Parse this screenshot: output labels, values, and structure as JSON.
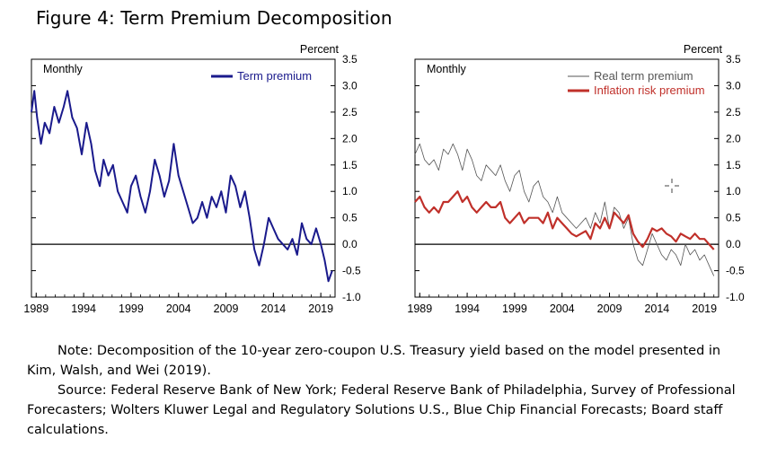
{
  "figure_title": "Figure 4: Term Premium Decomposition",
  "note_line": "Note: Decomposition of the 10-year zero-coupon U.S. Treasury yield based on the model presented in Kim, Walsh, and Wei (2019).",
  "source_line": "Source: Federal Reserve Bank of New York; Federal Reserve Bank of Philadelphia, Survey of Professional Forecasters; Wolters Kluwer Legal and Regulatory Solutions U.S., Blue Chip Financial Forecasts; Board staff calculations.",
  "colors": {
    "term_premium": "#1a1a8c",
    "real_term_premium": "#555555",
    "inflation_risk_premium": "#c0302a"
  },
  "chart_data": [
    {
      "type": "line",
      "frequency_label": "Monthly",
      "ylabel": "Percent",
      "ylim": [
        -1.0,
        3.5
      ],
      "yticks": [
        "3.5",
        "3.0",
        "2.5",
        "2.0",
        "1.5",
        "1.0",
        "0.5",
        "0.0",
        "-0.5",
        "-1.0"
      ],
      "xlim": [
        1988.5,
        2020.5
      ],
      "xticks": [
        "1989",
        "1994",
        "1999",
        "2004",
        "2009",
        "2014",
        "2019"
      ],
      "legend_position": "top-right",
      "series": [
        {
          "name": "Term premium",
          "x": [
            1988.5,
            1988.8,
            1989.1,
            1989.5,
            1989.9,
            1990.4,
            1990.9,
            1991.4,
            1991.9,
            1992.3,
            1992.8,
            1993.3,
            1993.8,
            1994.3,
            1994.8,
            1995.2,
            1995.7,
            1996.1,
            1996.6,
            1997.1,
            1997.6,
            1998.1,
            1998.6,
            1999.0,
            1999.5,
            2000.0,
            2000.5,
            2001.0,
            2001.5,
            2002.0,
            2002.5,
            2003.0,
            2003.5,
            2004.0,
            2004.5,
            2005.0,
            2005.5,
            2006.0,
            2006.5,
            2007.0,
            2007.5,
            2008.0,
            2008.5,
            2009.0,
            2009.5,
            2010.0,
            2010.5,
            2011.0,
            2011.5,
            2012.0,
            2012.5,
            2013.0,
            2013.5,
            2014.0,
            2014.5,
            2015.0,
            2015.5,
            2016.0,
            2016.5,
            2017.0,
            2017.5,
            2018.0,
            2018.5,
            2019.0,
            2019.4,
            2019.8,
            2020.2
          ],
          "y": [
            2.5,
            2.9,
            2.4,
            1.9,
            2.3,
            2.1,
            2.6,
            2.3,
            2.6,
            2.9,
            2.4,
            2.2,
            1.7,
            2.3,
            1.9,
            1.4,
            1.1,
            1.6,
            1.3,
            1.5,
            1.0,
            0.8,
            0.6,
            1.1,
            1.3,
            0.9,
            0.6,
            1.0,
            1.6,
            1.3,
            0.9,
            1.2,
            1.9,
            1.3,
            1.0,
            0.7,
            0.4,
            0.5,
            0.8,
            0.5,
            0.9,
            0.7,
            1.0,
            0.6,
            1.3,
            1.1,
            0.7,
            1.0,
            0.5,
            -0.1,
            -0.4,
            0.0,
            0.5,
            0.3,
            0.1,
            0.0,
            -0.1,
            0.1,
            -0.2,
            0.4,
            0.1,
            0.0,
            0.3,
            0.0,
            -0.3,
            -0.7,
            -0.5
          ]
        }
      ]
    },
    {
      "type": "line",
      "frequency_label": "Monthly",
      "ylabel": "Percent",
      "ylim": [
        -1.0,
        3.5
      ],
      "yticks": [
        "3.5",
        "3.0",
        "2.5",
        "2.0",
        "1.5",
        "1.0",
        "0.5",
        "0.0",
        "-0.5",
        "-1.0"
      ],
      "xlim": [
        1988.5,
        2020.5
      ],
      "xticks": [
        "1989",
        "1994",
        "1999",
        "2004",
        "2009",
        "2014",
        "2019"
      ],
      "legend_position": "top-right",
      "series": [
        {
          "name": "Real term premium",
          "x": [
            1988.5,
            1989.0,
            1989.5,
            1990.0,
            1990.5,
            1991.0,
            1991.5,
            1992.0,
            1992.5,
            1993.0,
            1993.5,
            1994.0,
            1994.5,
            1995.0,
            1995.5,
            1996.0,
            1996.5,
            1997.0,
            1997.5,
            1998.0,
            1998.5,
            1999.0,
            1999.5,
            2000.0,
            2000.5,
            2001.0,
            2001.5,
            2002.0,
            2002.5,
            2003.0,
            2003.5,
            2004.0,
            2004.5,
            2005.0,
            2005.5,
            2006.0,
            2006.5,
            2007.0,
            2007.5,
            2008.0,
            2008.5,
            2009.0,
            2009.5,
            2010.0,
            2010.5,
            2011.0,
            2011.5,
            2012.0,
            2012.5,
            2013.0,
            2013.5,
            2014.0,
            2014.5,
            2015.0,
            2015.5,
            2016.0,
            2016.5,
            2017.0,
            2017.5,
            2018.0,
            2018.5,
            2019.0,
            2019.5,
            2020.0
          ],
          "y": [
            1.7,
            1.9,
            1.6,
            1.5,
            1.6,
            1.4,
            1.8,
            1.7,
            1.9,
            1.7,
            1.4,
            1.8,
            1.6,
            1.3,
            1.2,
            1.5,
            1.4,
            1.3,
            1.5,
            1.2,
            1.0,
            1.3,
            1.4,
            1.0,
            0.8,
            1.1,
            1.2,
            0.9,
            0.8,
            0.6,
            0.9,
            0.6,
            0.5,
            0.4,
            0.3,
            0.4,
            0.5,
            0.3,
            0.6,
            0.4,
            0.8,
            0.3,
            0.7,
            0.6,
            0.3,
            0.5,
            0.0,
            -0.3,
            -0.4,
            -0.1,
            0.2,
            0.0,
            -0.2,
            -0.3,
            -0.1,
            -0.2,
            -0.4,
            0.0,
            -0.2,
            -0.1,
            -0.3,
            -0.2,
            -0.4,
            -0.6
          ]
        },
        {
          "name": "Inflation risk premium",
          "x": [
            1988.5,
            1989.0,
            1989.5,
            1990.0,
            1990.5,
            1991.0,
            1991.5,
            1992.0,
            1992.5,
            1993.0,
            1993.5,
            1994.0,
            1994.5,
            1995.0,
            1995.5,
            1996.0,
            1996.5,
            1997.0,
            1997.5,
            1998.0,
            1998.5,
            1999.0,
            1999.5,
            2000.0,
            2000.5,
            2001.0,
            2001.5,
            2002.0,
            2002.5,
            2003.0,
            2003.5,
            2004.0,
            2004.5,
            2005.0,
            2005.5,
            2006.0,
            2006.5,
            2007.0,
            2007.5,
            2008.0,
            2008.5,
            2009.0,
            2009.5,
            2010.0,
            2010.5,
            2011.0,
            2011.5,
            2012.0,
            2012.5,
            2013.0,
            2013.5,
            2014.0,
            2014.5,
            2015.0,
            2015.5,
            2016.0,
            2016.5,
            2017.0,
            2017.5,
            2018.0,
            2018.5,
            2019.0,
            2019.5,
            2020.0
          ],
          "y": [
            0.8,
            0.9,
            0.7,
            0.6,
            0.7,
            0.6,
            0.8,
            0.8,
            0.9,
            1.0,
            0.8,
            0.9,
            0.7,
            0.6,
            0.7,
            0.8,
            0.7,
            0.7,
            0.8,
            0.5,
            0.4,
            0.5,
            0.6,
            0.4,
            0.5,
            0.5,
            0.5,
            0.4,
            0.6,
            0.3,
            0.5,
            0.4,
            0.3,
            0.2,
            0.15,
            0.2,
            0.25,
            0.1,
            0.4,
            0.3,
            0.5,
            0.3,
            0.6,
            0.5,
            0.4,
            0.55,
            0.2,
            0.05,
            -0.05,
            0.1,
            0.3,
            0.25,
            0.3,
            0.2,
            0.15,
            0.05,
            0.2,
            0.15,
            0.1,
            0.2,
            0.1,
            0.1,
            0.0,
            -0.1
          ]
        }
      ]
    }
  ]
}
